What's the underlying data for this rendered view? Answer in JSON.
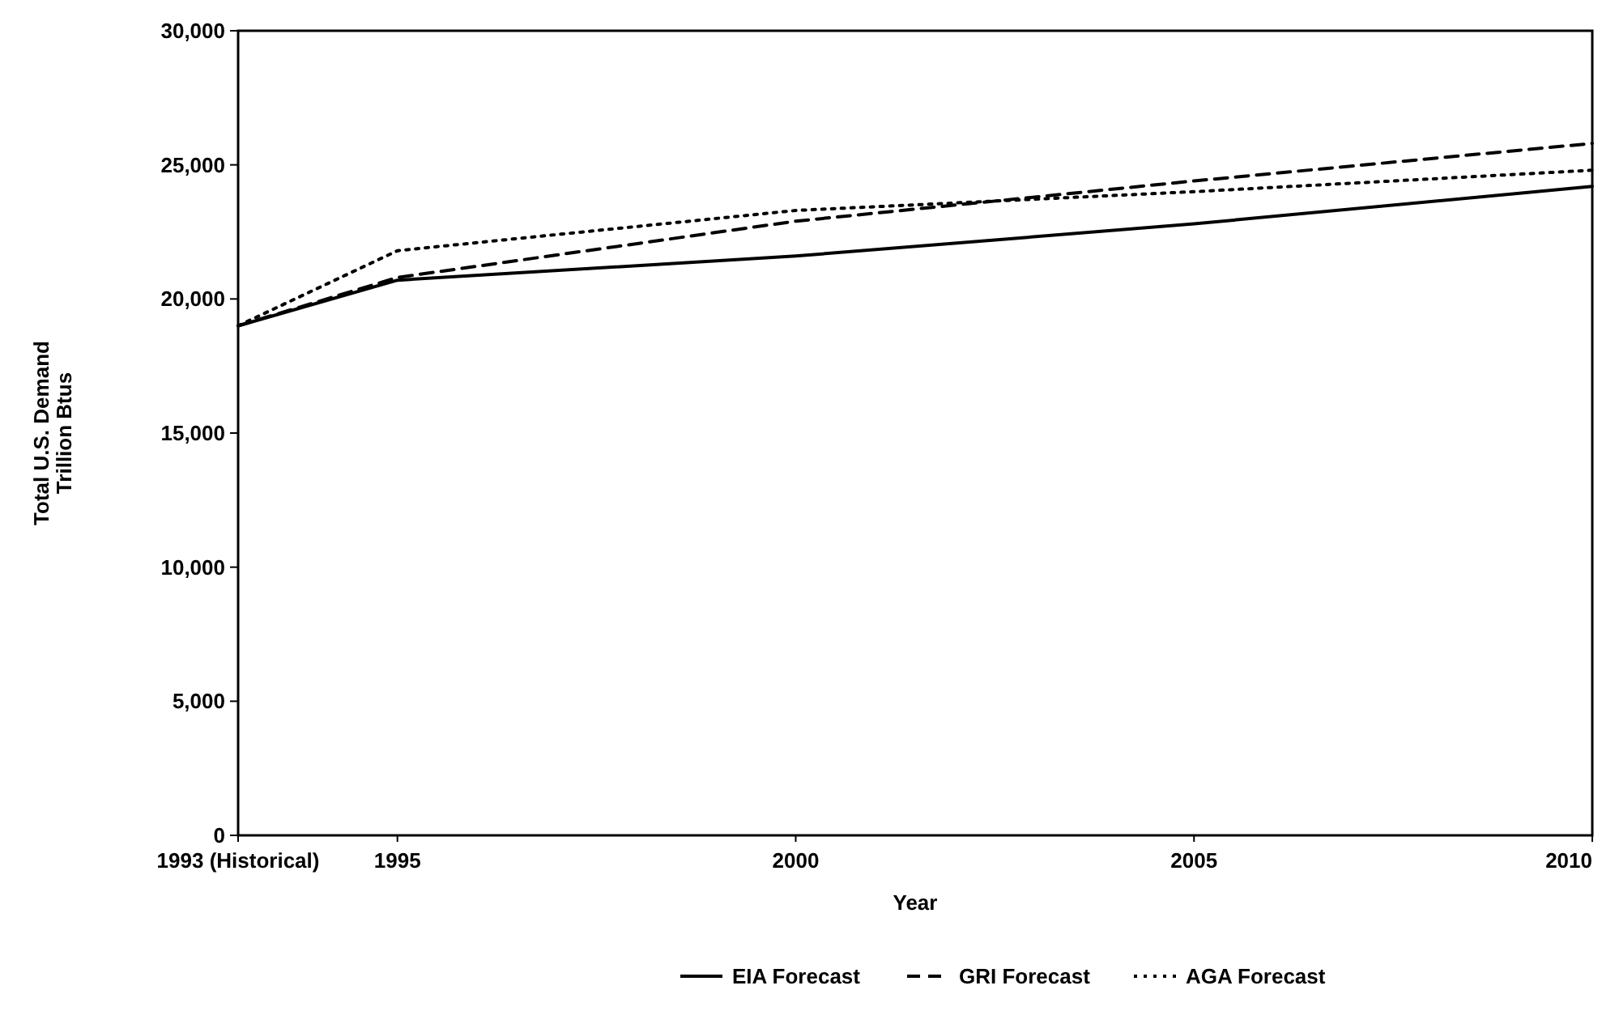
{
  "chart_data": {
    "type": "line",
    "xlabel": "Year",
    "ylabel": "Total U.S. Demand\nTrillion Btus",
    "x": [
      1993,
      1995,
      2000,
      2005,
      2010
    ],
    "series": [
      {
        "name": "EIA Forecast",
        "color": "#000000",
        "line_style": "solid",
        "values": [
          19000,
          20700,
          21600,
          22800,
          24200
        ]
      },
      {
        "name": "GRI Forecast",
        "color": "#000000",
        "line_style": "dashed",
        "values": [
          19000,
          20800,
          22900,
          24400,
          25800
        ]
      },
      {
        "name": "AGA Forecast",
        "color": "#000000",
        "line_style": "dotted",
        "values": [
          19000,
          21800,
          23300,
          24000,
          24800
        ]
      }
    ],
    "xlim": [
      1993,
      2010
    ],
    "ylim": [
      0,
      30000
    ],
    "xticks": [
      {
        "value": 1993,
        "label": "1993 (Historical)"
      },
      1995,
      2000,
      2005,
      2010
    ],
    "yticks": [
      {
        "value": 0,
        "label": "0"
      },
      {
        "value": 5000,
        "label": "5,000"
      },
      {
        "value": 10000,
        "label": "10,000"
      },
      {
        "value": 15000,
        "label": "15,000"
      },
      {
        "value": 20000,
        "label": "20,000"
      },
      {
        "value": 25000,
        "label": "25,000"
      },
      {
        "value": 30000,
        "label": "30,000"
      }
    ],
    "grid": false,
    "legend": "bottom",
    "marker": "none"
  }
}
